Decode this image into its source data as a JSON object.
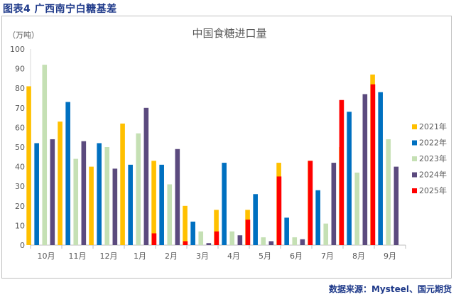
{
  "figure_title": "图表4  广西南宁白糖基差",
  "source": "数据来源：Mysteel、国元期货",
  "chart_data": {
    "type": "bar",
    "title": "中国食糖进口量",
    "unit_label": "（万吨）",
    "categories": [
      "10月",
      "11月",
      "12月",
      "1月",
      "2月",
      "3月",
      "4月",
      "5月",
      "6月",
      "7月",
      "8月",
      "9月"
    ],
    "ylim": [
      0,
      100
    ],
    "yticks": [
      0,
      10,
      20,
      30,
      40,
      50,
      60,
      70,
      80,
      90,
      100
    ],
    "legend_position": "right",
    "grid": false,
    "series": [
      {
        "name": "2021年",
        "color": "#FFC000",
        "values": [
          81,
          63,
          40,
          62,
          43,
          20,
          18,
          18,
          42,
          43,
          50,
          87
        ]
      },
      {
        "name": "2022年",
        "color": "#0070C0",
        "values": [
          52,
          73,
          52,
          41,
          41,
          12,
          42,
          26,
          14,
          28,
          68,
          78
        ]
      },
      {
        "name": "2023年",
        "color": "#C5E0B4",
        "values": [
          92,
          44,
          50,
          57,
          31,
          7,
          7,
          4,
          4,
          11,
          37,
          54
        ]
      },
      {
        "name": "2024年",
        "color": "#5B4A7E",
        "values": [
          54,
          53,
          39,
          70,
          49,
          1,
          5,
          2,
          3,
          42,
          77,
          40
        ]
      },
      {
        "name": "2025年",
        "color": "#FF0000",
        "values": [
          null,
          null,
          null,
          6,
          2,
          7,
          13,
          35,
          43,
          74,
          82,
          null
        ]
      }
    ]
  }
}
